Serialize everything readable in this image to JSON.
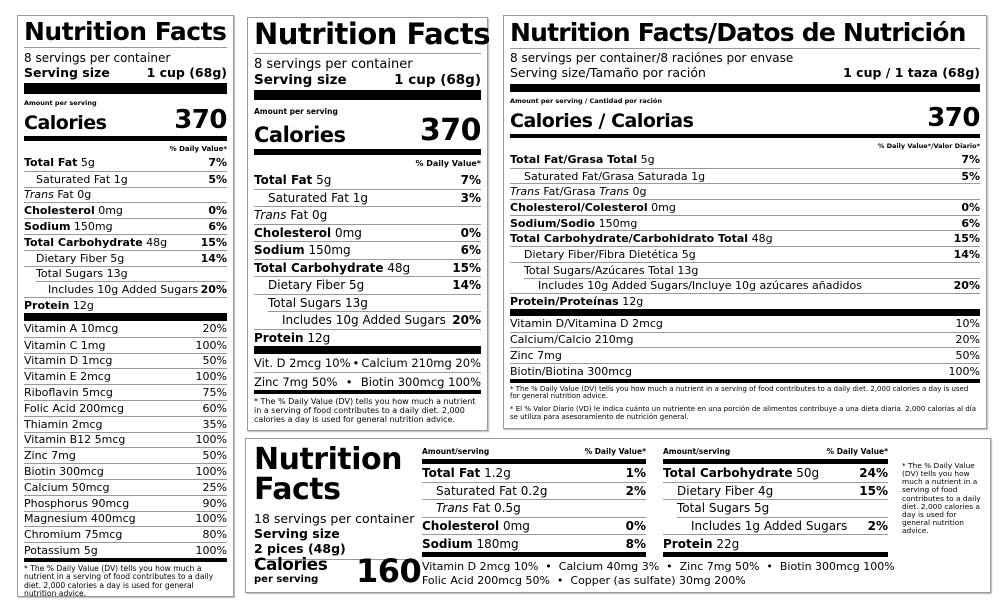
{
  "label1": {
    "title": "Nutrition Facts",
    "servings": "8 servings per container",
    "serving_size_label": "Serving size",
    "serving_size_value": "1 cup (68g)",
    "amount_per_serving": "Amount per serving",
    "calories_label": "Calories",
    "calories_value": "370",
    "dv_header": "% Daily Value*",
    "nutrients": [
      {
        "parts": [
          {
            "t": "Total Fat",
            "s": "b"
          },
          {
            "t": " 5g",
            "s": "n"
          }
        ],
        "dv": "7%",
        "indent": 0
      },
      {
        "parts": [
          {
            "t": "Saturated Fat 1g",
            "s": "n"
          }
        ],
        "dv": "5%",
        "indent": 1
      },
      {
        "parts": [
          {
            "t": "Trans",
            "s": "i"
          },
          {
            "t": " Fat 0g",
            "s": "n"
          }
        ],
        "dv": "",
        "indent": 0
      },
      {
        "parts": [
          {
            "t": "Cholesterol",
            "s": "b"
          },
          {
            "t": " 0mg",
            "s": "n"
          }
        ],
        "dv": "0%",
        "indent": 0
      },
      {
        "parts": [
          {
            "t": "Sodium",
            "s": "b"
          },
          {
            "t": " 150mg",
            "s": "n"
          }
        ],
        "dv": "6%",
        "indent": 0
      },
      {
        "parts": [
          {
            "t": "Total Carbohydrate",
            "s": "b"
          },
          {
            "t": " 48g",
            "s": "n"
          }
        ],
        "dv": "15%",
        "indent": 0
      },
      {
        "parts": [
          {
            "t": "Dietary Fiber 5g",
            "s": "n"
          }
        ],
        "dv": "14%",
        "indent": 1
      },
      {
        "parts": [
          {
            "t": "Total Sugars 13g",
            "s": "n"
          }
        ],
        "dv": "",
        "indent": 1
      },
      {
        "parts": [
          {
            "t": "Includes 10g Added Sugars",
            "s": "n"
          }
        ],
        "dv": "20%",
        "indent": 2
      },
      {
        "parts": [
          {
            "t": "Protein",
            "s": "b"
          },
          {
            "t": " 12g",
            "s": "n"
          }
        ],
        "dv": "",
        "indent": 0
      }
    ],
    "vitamins": [
      {
        "name": "Vitamin A 10mcg",
        "dv": "20%"
      },
      {
        "name": "Vitamin C 1mg",
        "dv": "100%"
      },
      {
        "name": "Vitamin D 1mcg",
        "dv": "50%"
      },
      {
        "name": "Vitamin E 2mcg",
        "dv": "100%"
      },
      {
        "name": "Riboflavin 5mcg",
        "dv": "75%"
      },
      {
        "name": "Folic Acid 200mcg",
        "dv": "60%"
      },
      {
        "name": "Thiamin 2mcg",
        "dv": "35%"
      },
      {
        "name": "Vitamin B12 5mcg",
        "dv": "100%"
      },
      {
        "name": "Zinc 7mg",
        "dv": "50%"
      },
      {
        "name": "Biotin 300mcg",
        "dv": "100%"
      },
      {
        "name": "Calcium 50mcg",
        "dv": "25%"
      },
      {
        "name": "Phosphorus 90mcg",
        "dv": "90%"
      },
      {
        "name": "Magnesium 400mcg",
        "dv": "100%"
      },
      {
        "name": "Chromium 75mcg",
        "dv": "80%"
      },
      {
        "name": "Potassium 5g",
        "dv": "100%"
      }
    ],
    "footnote": "* The % Daily Value (DV) tells you how much a nutrient in a serving of food contributes to a daily diet. 2,000 calories a day is used for general nutrition advice."
  },
  "label2": {
    "title": "Nutrition Facts",
    "servings": "8 servings per container",
    "serving_size_label": "Serving size",
    "serving_size_value": "1 cup (68g)",
    "amount_per_serving": "Amount per serving",
    "calories_label": "Calories",
    "calories_value": "370",
    "dv_header": "% Daily Value*",
    "nutrients": [
      {
        "parts": [
          {
            "t": "Total Fat",
            "s": "b"
          },
          {
            "t": " 5g",
            "s": "n"
          }
        ],
        "dv": "7%",
        "indent": 0
      },
      {
        "parts": [
          {
            "t": "Saturated Fat 1g",
            "s": "n"
          }
        ],
        "dv": "3%",
        "indent": 1
      },
      {
        "parts": [
          {
            "t": "Trans",
            "s": "i"
          },
          {
            "t": " Fat 0g",
            "s": "n"
          }
        ],
        "dv": "",
        "indent": 0
      },
      {
        "parts": [
          {
            "t": "Cholesterol",
            "s": "b"
          },
          {
            "t": " 0mg",
            "s": "n"
          }
        ],
        "dv": "0%",
        "indent": 0
      },
      {
        "parts": [
          {
            "t": "Sodium",
            "s": "b"
          },
          {
            "t": " 150mg",
            "s": "n"
          }
        ],
        "dv": "6%",
        "indent": 0
      },
      {
        "parts": [
          {
            "t": "Total Carbohydrate",
            "s": "b"
          },
          {
            "t": " 48g",
            "s": "n"
          }
        ],
        "dv": "15%",
        "indent": 0
      },
      {
        "parts": [
          {
            "t": "Dietary Fiber 5g",
            "s": "n"
          }
        ],
        "dv": "14%",
        "indent": 1
      },
      {
        "parts": [
          {
            "t": "Total Sugars 13g",
            "s": "n"
          }
        ],
        "dv": "",
        "indent": 1
      },
      {
        "parts": [
          {
            "t": "Includes 10g Added Sugars",
            "s": "n"
          }
        ],
        "dv": "20%",
        "indent": 2
      },
      {
        "parts": [
          {
            "t": "Protein",
            "s": "b"
          },
          {
            "t": " 12g",
            "s": "n"
          }
        ],
        "dv": "",
        "indent": 0
      }
    ],
    "vitamin_rows": [
      {
        "left": "Vit. D 2mcg 10%",
        "sep": "•",
        "right": "Calcium 210mg 20%"
      },
      {
        "left": "Zinc 7mg 50%",
        "sep": "•",
        "right": "Biotin 300mcg 100%"
      }
    ],
    "footnote": "* The % Daily Value (DV) tells you how much a nutrient in a serving of food contributes to a daily diet. 2,000 calories a day is used for general nutrition advice."
  },
  "label3": {
    "title": "Nutrition Facts/Datos de Nutrición",
    "servings": "8 servings per container/8 raciónes por envase",
    "serving_size_label": "Serving size/Tamaño por ración",
    "serving_size_value": "1 cup / 1 taza (68g)",
    "amount_per_serving": "Amount per serving / Cantidad por ración",
    "calories_label": "Calories / Calorias",
    "calories_value": "370",
    "dv_header": "% Daily Value*/Valor Diario*",
    "nutrients": [
      {
        "parts": [
          {
            "t": "Total Fat/Grasa Total",
            "s": "b"
          },
          {
            "t": " 5g",
            "s": "n"
          }
        ],
        "dv": "7%",
        "indent": 0
      },
      {
        "parts": [
          {
            "t": "Saturated Fat/Grasa Saturada 1g",
            "s": "n"
          }
        ],
        "dv": "5%",
        "indent": 1
      },
      {
        "parts": [
          {
            "t": "Trans",
            "s": "i"
          },
          {
            "t": " Fat/Grasa ",
            "s": "n"
          },
          {
            "t": "Trans",
            "s": "i"
          },
          {
            "t": " 0g",
            "s": "n"
          }
        ],
        "dv": "",
        "indent": 0
      },
      {
        "parts": [
          {
            "t": "Cholesterol/Colesterol",
            "s": "b"
          },
          {
            "t": " 0mg",
            "s": "n"
          }
        ],
        "dv": "0%",
        "indent": 0
      },
      {
        "parts": [
          {
            "t": "Sodium/Sodio",
            "s": "b"
          },
          {
            "t": " 150mg",
            "s": "n"
          }
        ],
        "dv": "6%",
        "indent": 0
      },
      {
        "parts": [
          {
            "t": "Total Carbohydrate/Carbohidrato Total",
            "s": "b"
          },
          {
            "t": " 48g",
            "s": "n"
          }
        ],
        "dv": "15%",
        "indent": 0
      },
      {
        "parts": [
          {
            "t": "Dietary Fiber/Fibra Dietética 5g",
            "s": "n"
          }
        ],
        "dv": "14%",
        "indent": 1
      },
      {
        "parts": [
          {
            "t": "Total Sugars/Azúcares Total 13g",
            "s": "n"
          }
        ],
        "dv": "",
        "indent": 1
      },
      {
        "parts": [
          {
            "t": "Includes 10g Added Sugars/Incluye 10g azúcares añadidos",
            "s": "n"
          }
        ],
        "dv": "20%",
        "indent": 2
      },
      {
        "parts": [
          {
            "t": "Protein/Proteínas",
            "s": "b"
          },
          {
            "t": " 12g",
            "s": "n"
          }
        ],
        "dv": "",
        "indent": 0
      }
    ],
    "vitamins": [
      {
        "name": "Vitamin D/Vitamina D 2mcg",
        "dv": "10%"
      },
      {
        "name": "Calcium/Calcio 210mg",
        "dv": "20%"
      },
      {
        "name": "Zinc 7mg",
        "dv": "50%"
      },
      {
        "name": "Biotin/Biotina 300mcg",
        "dv": "100%"
      }
    ],
    "footnote": "* The % Daily Value (DV) tells you how much a nutrient in a serving of food contributes to a daily diet. 2,000 calories a day is used for general nutrition advice.",
    "footnote_es": "* El % Valor Diario (VD) le indica cuánto un nutriente en una porción de alimentos contribuye a una dieta diaria. 2,000 calorías al día se utiliza para asesoramiento de nutrición general."
  },
  "label4": {
    "title_line1": "Nutrition",
    "title_line2": "Facts",
    "servings": "18 servings per container",
    "serving_size_label": "Serving size",
    "serving_size_value": "2 pices (48g)",
    "calories_label": "Calories",
    "calories_sub": "per serving",
    "calories_value": "160",
    "col_header_amount": "Amount/serving",
    "col_header_dv": "% Daily Value*",
    "col1": [
      {
        "parts": [
          {
            "t": "Total Fat",
            "s": "b"
          },
          {
            "t": " 1.2g",
            "s": "n"
          }
        ],
        "dv": "1%",
        "indent": 0
      },
      {
        "parts": [
          {
            "t": "Saturated Fat 0.2g",
            "s": "n"
          }
        ],
        "dv": "2%",
        "indent": 1
      },
      {
        "parts": [
          {
            "t": "Trans",
            "s": "i"
          },
          {
            "t": " Fat 0.5g",
            "s": "n"
          }
        ],
        "dv": "",
        "indent": 1
      },
      {
        "parts": [
          {
            "t": "Cholesterol",
            "s": "b"
          },
          {
            "t": " 0mg",
            "s": "n"
          }
        ],
        "dv": "0%",
        "indent": 0
      },
      {
        "parts": [
          {
            "t": "Sodium",
            "s": "b"
          },
          {
            "t": " 180mg",
            "s": "n"
          }
        ],
        "dv": "8%",
        "indent": 0
      }
    ],
    "col2": [
      {
        "parts": [
          {
            "t": "Total Carbohydrate",
            "s": "b"
          },
          {
            "t": " 50g",
            "s": "n"
          }
        ],
        "dv": "24%",
        "indent": 0
      },
      {
        "parts": [
          {
            "t": "Dietary Fiber 4g",
            "s": "n"
          }
        ],
        "dv": "15%",
        "indent": 1
      },
      {
        "parts": [
          {
            "t": "Total Sugars 5g",
            "s": "n"
          }
        ],
        "dv": "",
        "indent": 1
      },
      {
        "parts": [
          {
            "t": "Includes 1g Added Sugars",
            "s": "n"
          }
        ],
        "dv": "2%",
        "indent": 2
      },
      {
        "parts": [
          {
            "t": "Protein",
            "s": "b"
          },
          {
            "t": " 22g",
            "s": "n"
          }
        ],
        "dv": "",
        "indent": 0
      }
    ],
    "vitamin_line1": "Vitamin D 2mcg 10%  •  Calcium 40mg 3%  •  Zinc 7mg 50%  •  Biotin 300mcg 100%",
    "vitamin_line2": "Folic Acid 200mcg 50%  •  Copper (as sulfate) 30mg 200%",
    "footnote": "* The % Daily Value (DV) tells you how much a nutrient in a serving of food contributes to a daily diet. 2,000 calories a day is used for general nutrition advice."
  }
}
